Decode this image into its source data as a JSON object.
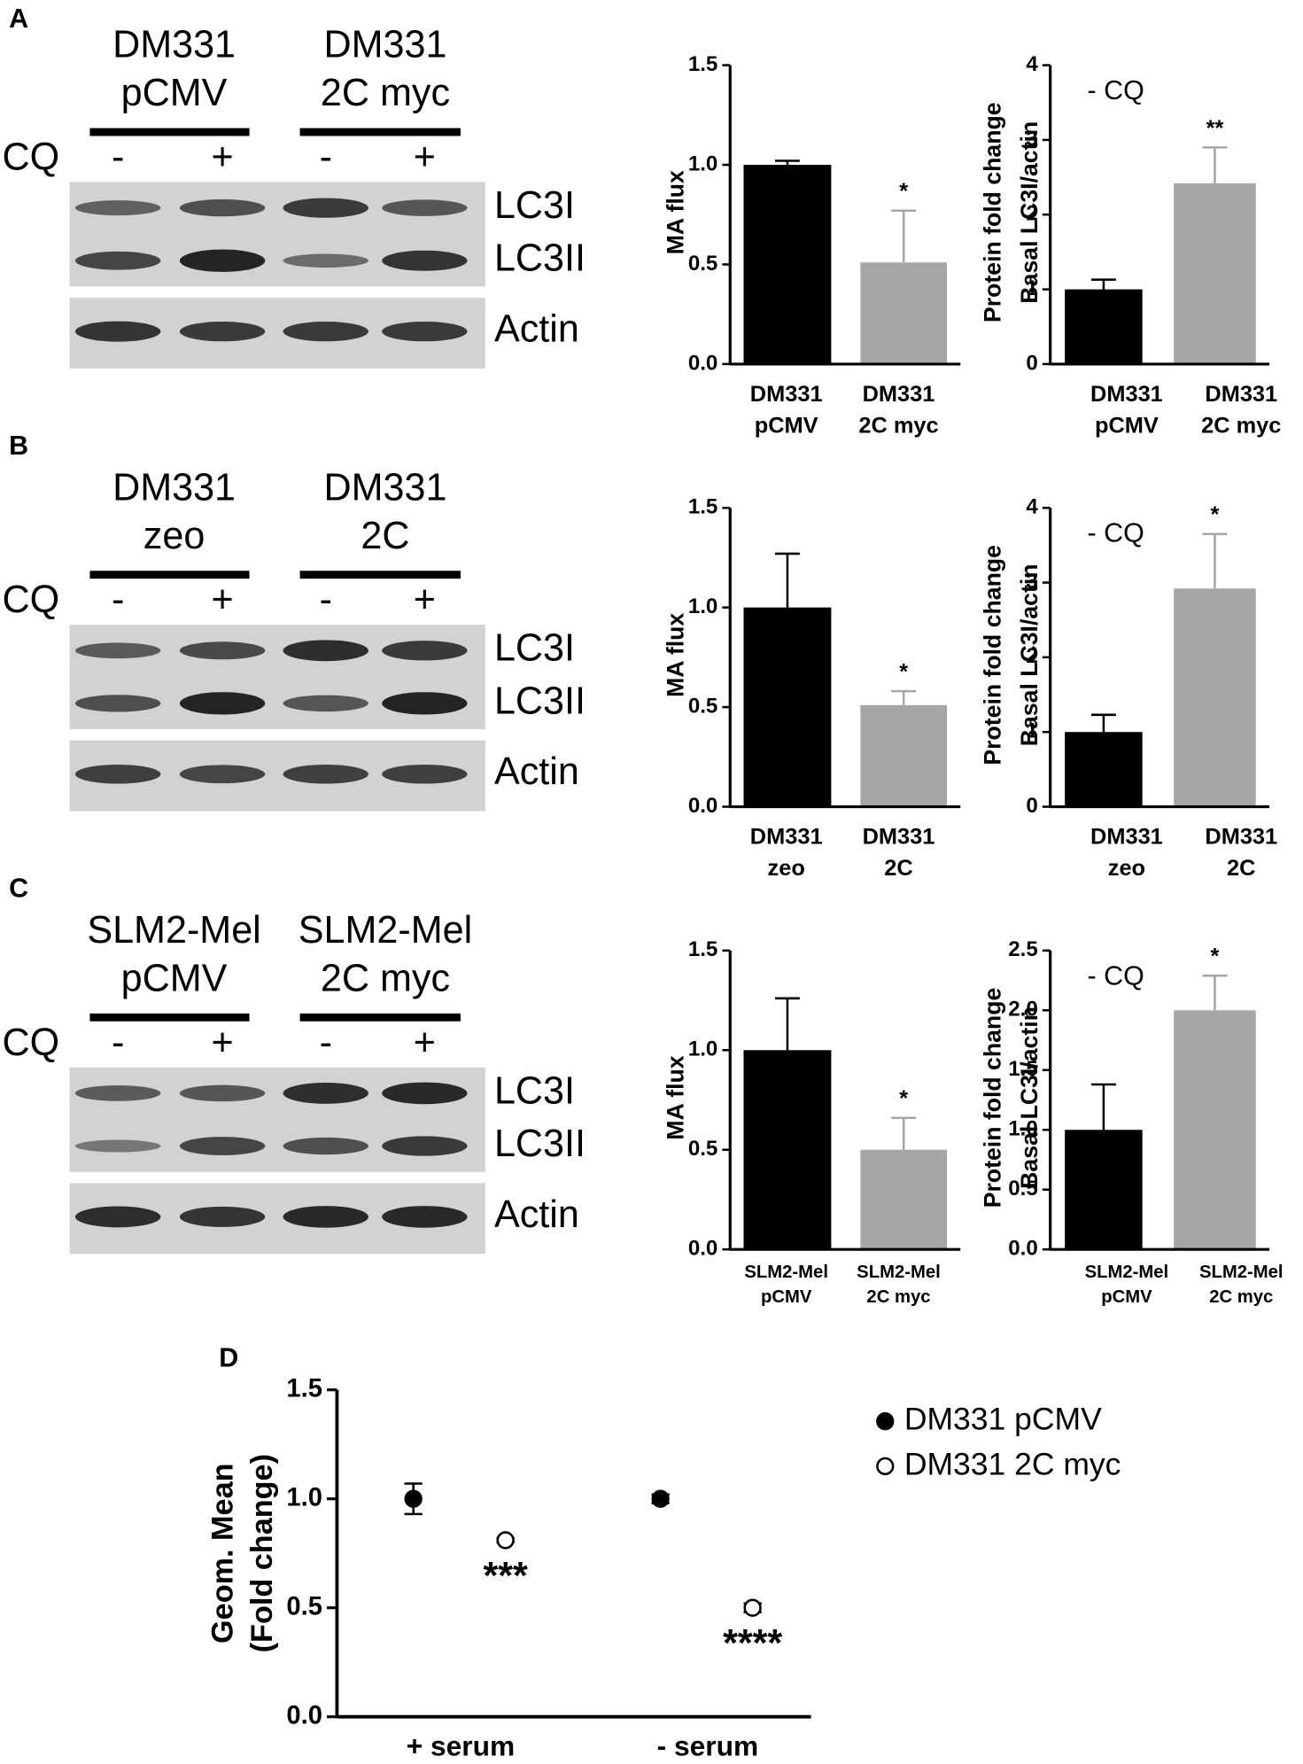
{
  "panel_labels": [
    "A",
    "B",
    "C",
    "D"
  ],
  "blots": [
    {
      "columns": [
        [
          "DM331",
          "pCMV"
        ],
        [
          "DM331",
          "2C myc"
        ]
      ],
      "treatment_label": "CQ",
      "treatments": [
        "-",
        "+",
        "-",
        "+"
      ],
      "bands": [
        "LC3I",
        "LC3II",
        "Actin"
      ]
    },
    {
      "columns": [
        [
          "DM331",
          "zeo"
        ],
        [
          "DM331",
          "2C"
        ]
      ],
      "treatment_label": "CQ",
      "treatments": [
        "-",
        "+",
        "-",
        "+"
      ],
      "bands": [
        "LC3I",
        "LC3II",
        "Actin"
      ]
    },
    {
      "columns": [
        [
          "SLM2-Mel",
          "pCMV"
        ],
        [
          "SLM2-Mel",
          "2C myc"
        ]
      ],
      "treatment_label": "CQ",
      "treatments": [
        "-",
        "+",
        "-",
        "+"
      ],
      "bands": [
        "LC3I",
        "LC3II",
        "Actin"
      ]
    }
  ],
  "chart_data": [
    {
      "type": "bar",
      "ylabel": [
        "MA flux"
      ],
      "categories": [
        [
          "DM331",
          "pCMV"
        ],
        [
          "DM331",
          "2C myc"
        ]
      ],
      "values": [
        1.0,
        0.51
      ],
      "errors": [
        0.02,
        0.26
      ],
      "significance": [
        null,
        "*"
      ],
      "colors": [
        "#000000",
        "#a6a6a6"
      ],
      "ylim": [
        0,
        1.5
      ],
      "yticks": [
        {
          "value": 0,
          "label": "0.0"
        },
        {
          "value": 0.5,
          "label": "0.5"
        },
        {
          "value": 1,
          "label": "1.0"
        },
        {
          "value": 1.5,
          "label": "1.5"
        }
      ]
    },
    {
      "type": "bar",
      "ylabel": [
        "Protein fold change",
        "Basal LC3I/actin"
      ],
      "annotation": "- CQ",
      "categories": [
        [
          "DM331",
          "pCMV"
        ],
        [
          "DM331",
          "2C myc"
        ]
      ],
      "values": [
        1.0,
        2.42
      ],
      "errors": [
        0.13,
        0.48
      ],
      "significance": [
        null,
        "**"
      ],
      "colors": [
        "#000000",
        "#a6a6a6"
      ],
      "ylim": [
        0,
        4
      ],
      "yticks": [
        0,
        1,
        2,
        3,
        4
      ]
    },
    {
      "type": "bar",
      "ylabel": [
        "MA flux"
      ],
      "categories": [
        [
          "DM331",
          "zeo"
        ],
        [
          "DM331",
          "2C"
        ]
      ],
      "values": [
        1.0,
        0.51
      ],
      "errors": [
        0.27,
        0.07
      ],
      "significance": [
        null,
        "*"
      ],
      "colors": [
        "#000000",
        "#a6a6a6"
      ],
      "ylim": [
        0,
        1.5
      ],
      "yticks": [
        {
          "value": 0,
          "label": "0.0"
        },
        {
          "value": 0.5,
          "label": "0.5"
        },
        {
          "value": 1,
          "label": "1.0"
        },
        {
          "value": 1.5,
          "label": "1.5"
        }
      ]
    },
    {
      "type": "bar",
      "ylabel": [
        "Protein fold change",
        "Basal LC3I/actin"
      ],
      "annotation": "- CQ",
      "categories": [
        [
          "DM331",
          "zeo"
        ],
        [
          "DM331",
          "2C"
        ]
      ],
      "values": [
        1.0,
        2.92
      ],
      "errors": [
        0.23,
        0.73
      ],
      "significance": [
        null,
        "*"
      ],
      "colors": [
        "#000000",
        "#a6a6a6"
      ],
      "ylim": [
        0,
        4
      ],
      "yticks": [
        0,
        1,
        2,
        3,
        4
      ]
    },
    {
      "type": "bar",
      "ylabel": [
        "MA flux"
      ],
      "categories": [
        [
          "SLM2-Mel",
          "pCMV"
        ],
        [
          "SLM2-Mel",
          "2C myc"
        ]
      ],
      "values": [
        1.0,
        0.5
      ],
      "errors": [
        0.26,
        0.16
      ],
      "significance": [
        null,
        "*"
      ],
      "colors": [
        "#000000",
        "#a6a6a6"
      ],
      "ylim": [
        0,
        1.5
      ],
      "yticks": [
        {
          "value": 0,
          "label": "0.0"
        },
        {
          "value": 0.5,
          "label": "0.5"
        },
        {
          "value": 1,
          "label": "1.0"
        },
        {
          "value": 1.5,
          "label": "1.5"
        }
      ]
    },
    {
      "type": "bar",
      "ylabel": [
        "Protein fold change",
        "Basal LC3I/actin"
      ],
      "annotation": "- CQ",
      "categories": [
        [
          "SLM2-Mel",
          "pCMV"
        ],
        [
          "SLM2-Mel",
          "2C myc"
        ]
      ],
      "values": [
        1.0,
        2.0
      ],
      "errors": [
        0.38,
        0.29
      ],
      "significance": [
        null,
        "*"
      ],
      "colors": [
        "#000000",
        "#a6a6a6"
      ],
      "ylim": [
        0,
        2.5
      ],
      "yticks": [
        {
          "value": 0,
          "label": "0.0"
        },
        {
          "value": 0.5,
          "label": "0.5"
        },
        {
          "value": 1,
          "label": "1.0"
        },
        {
          "value": 1.5,
          "label": "1.5"
        },
        {
          "value": 2,
          "label": "2.0"
        },
        {
          "value": 2.5,
          "label": "2.5"
        }
      ]
    },
    {
      "type": "scatter",
      "ylabel": [
        "Geom. Mean",
        "(Fold change)"
      ],
      "categories": [
        "+ serum",
        "- serum"
      ],
      "series": [
        {
          "name": "DM331 pCMV",
          "color": "#000000",
          "filled": true,
          "values": [
            1.0,
            1.0
          ],
          "errors": [
            0.07,
            0.02
          ]
        },
        {
          "name": "DM331 2C myc",
          "color": "#000000",
          "filled": false,
          "values": [
            0.81,
            0.5
          ],
          "errors": [
            0.01,
            0.02
          ],
          "significance": [
            "***",
            "****"
          ]
        }
      ],
      "ylim": [
        0,
        1.5
      ],
      "yticks": [
        {
          "value": 0,
          "label": "0.0"
        },
        {
          "value": 0.5,
          "label": "0.5"
        },
        {
          "value": 1,
          "label": "1.0"
        },
        {
          "value": 1.5,
          "label": "1.5"
        }
      ]
    }
  ]
}
